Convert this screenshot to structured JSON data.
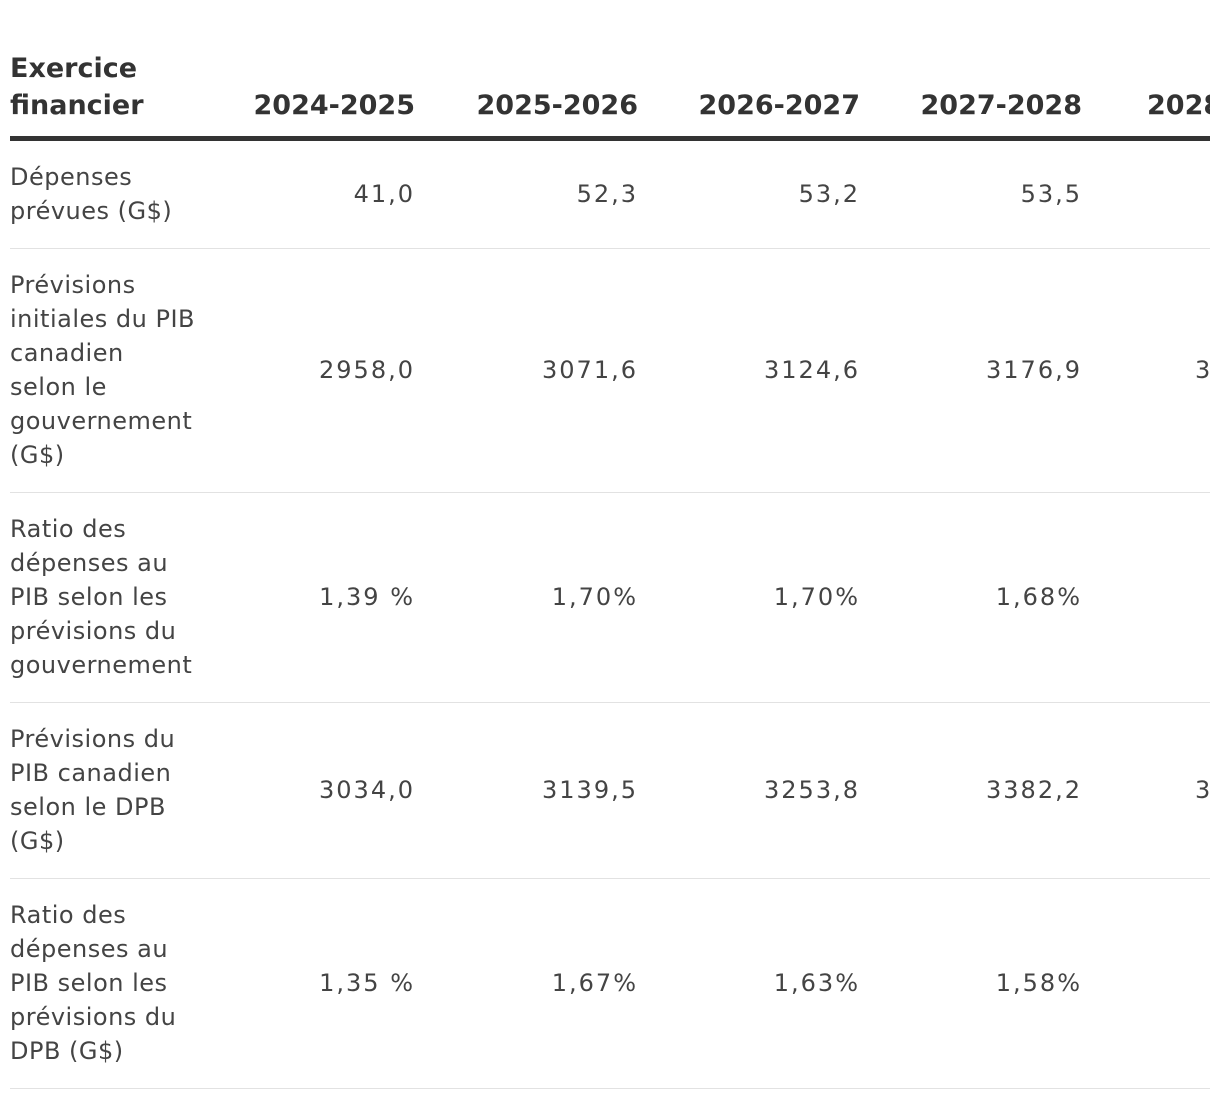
{
  "table": {
    "header": [
      "Exercice financier",
      "2024-2025",
      "2025-2026",
      "2026-2027",
      "2027-2028",
      "2028"
    ],
    "rows": [
      {
        "label": "Dépenses prévues (G$)",
        "values": [
          "41,0",
          "52,3",
          "53,2",
          "53,5"
        ]
      },
      {
        "label": "Prévisions initiales du PIB canadien selon le gouvernement (G$)",
        "values": [
          "2958,0",
          "3071,6",
          "3124,6",
          "3176,9",
          "3"
        ]
      },
      {
        "label": "Ratio des dépenses au PIB selon les prévisions du gouvernement",
        "values": [
          "1,39 %",
          "1,70%",
          "1,70%",
          "1,68%"
        ]
      },
      {
        "label": "Prévisions du PIB canadien selon le DPB (G$)",
        "values": [
          "3034,0",
          "3139,5",
          "3253,8",
          "3382,2",
          "3"
        ]
      },
      {
        "label": "Ratio des dépenses au PIB selon les prévisions du DPB (G$)",
        "values": [
          "1,35 %",
          "1,67%",
          "1,63%",
          "1,58%"
        ]
      }
    ]
  }
}
